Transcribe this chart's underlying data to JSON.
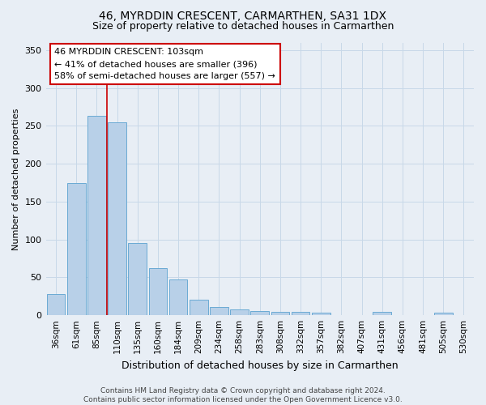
{
  "title": "46, MYRDDIN CRESCENT, CARMARTHEN, SA31 1DX",
  "subtitle": "Size of property relative to detached houses in Carmarthen",
  "xlabel": "Distribution of detached houses by size in Carmarthen",
  "ylabel": "Number of detached properties",
  "footer_line1": "Contains HM Land Registry data © Crown copyright and database right 2024.",
  "footer_line2": "Contains public sector information licensed under the Open Government Licence v3.0.",
  "bar_labels": [
    "36sqm",
    "61sqm",
    "85sqm",
    "110sqm",
    "135sqm",
    "160sqm",
    "184sqm",
    "209sqm",
    "234sqm",
    "258sqm",
    "283sqm",
    "308sqm",
    "332sqm",
    "357sqm",
    "382sqm",
    "407sqm",
    "431sqm",
    "456sqm",
    "481sqm",
    "505sqm",
    "530sqm"
  ],
  "bar_values": [
    28,
    175,
    263,
    255,
    95,
    62,
    47,
    20,
    11,
    8,
    6,
    4,
    4,
    3,
    0,
    0,
    4,
    0,
    0,
    3,
    0
  ],
  "bar_color": "#b8d0e8",
  "bar_edge_color": "#6aaad4",
  "grid_color": "#c8d8e8",
  "background_color": "#e8eef5",
  "property_line_x": 2.5,
  "property_line_color": "#cc0000",
  "annotation_text": "46 MYRDDIN CRESCENT: 103sqm\n← 41% of detached houses are smaller (396)\n58% of semi-detached houses are larger (557) →",
  "annotation_box_facecolor": "#ffffff",
  "annotation_box_edgecolor": "#cc0000",
  "ylim": [
    0,
    360
  ],
  "yticks": [
    0,
    50,
    100,
    150,
    200,
    250,
    300,
    350
  ],
  "title_fontsize": 10,
  "subtitle_fontsize": 9,
  "xlabel_fontsize": 9,
  "ylabel_fontsize": 8,
  "tick_fontsize": 8,
  "xtick_fontsize": 7.5,
  "annotation_fontsize": 8
}
